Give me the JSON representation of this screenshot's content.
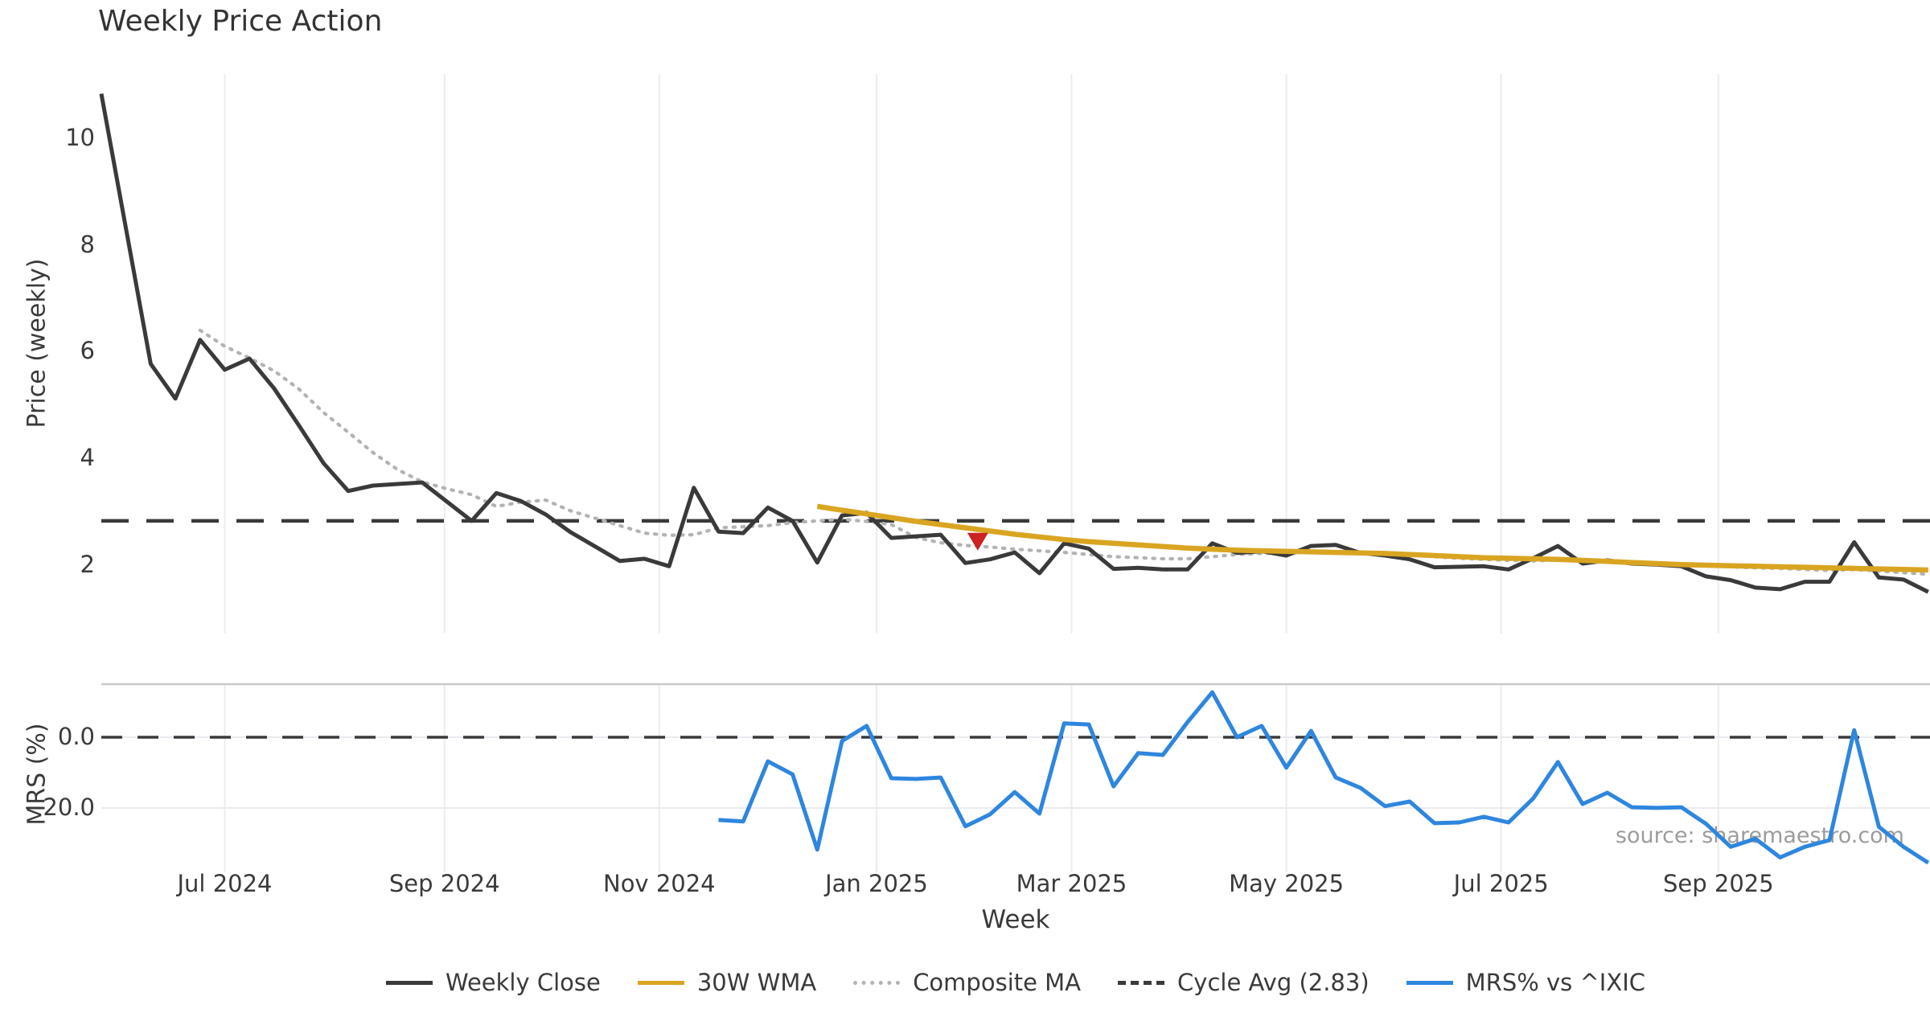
{
  "title": "Weekly Price Action",
  "source_text": "source: sharemaestro.com",
  "xlabel": "Week",
  "colors": {
    "weekly_close": "#3A3A3A",
    "wma_30w": "#D9A521",
    "composite_ma": "#B3B3B3",
    "cycle_avg": "#3A3A3A",
    "mrs_line": "#2E86DE",
    "marker": "#CC2222",
    "grid": "#ECECEC",
    "subgrid": "#E9E9EF",
    "spine": "#C9C9C9",
    "text": "#3A3A3A",
    "muted_text": "#9C9C9C"
  },
  "legend": [
    {
      "label": "Weekly Close",
      "color": "#3A3A3A",
      "style": "solid"
    },
    {
      "label": "30W WMA",
      "color": "#D9A521",
      "style": "solid"
    },
    {
      "label": "Composite MA",
      "color": "#B3B3B3",
      "style": "dotted"
    },
    {
      "label": "Cycle Avg (2.83)",
      "color": "#3A3A3A",
      "style": "dashed"
    },
    {
      "label": "MRS% vs ^IXIC",
      "color": "#2E86DE",
      "style": "solid"
    }
  ],
  "chart_data": {
    "type": "line",
    "x_unit": "week_index",
    "x_domain": [
      0,
      74
    ],
    "x_period": "Jun 2024 - Nov 2025, weekly",
    "grid": "vertical-month-gridlines",
    "legend_position": "bottom-center",
    "xticks": [
      {
        "label": "Jul 2024",
        "week": 5.0
      },
      {
        "label": "Sep 2024",
        "week": 13.9
      },
      {
        "label": "Nov 2024",
        "week": 22.6
      },
      {
        "label": "Jan 2025",
        "week": 31.4
      },
      {
        "label": "Mar 2025",
        "week": 39.3
      },
      {
        "label": "May 2025",
        "week": 48.0
      },
      {
        "label": "Jul 2025",
        "week": 56.7
      },
      {
        "label": "Sep 2025",
        "week": 65.5
      }
    ],
    "panels": [
      {
        "name": "price",
        "ylabel": "Price (weekly)",
        "ylim": [
          0.72,
          11.2
        ],
        "yticks": [
          {
            "label": "10",
            "value": 10
          },
          {
            "label": "8",
            "value": 8
          },
          {
            "label": "6",
            "value": 6
          },
          {
            "label": "4",
            "value": 4
          },
          {
            "label": "2",
            "value": 2
          }
        ],
        "series": [
          {
            "name": "Cycle Avg",
            "style": "dashed",
            "color": "#3A3A3A",
            "width": 4.5,
            "constant": 2.83
          },
          {
            "name": "Composite MA",
            "style": "dotted",
            "color": "#B3B3B3",
            "width": 4.2,
            "start_week": 4,
            "values": [
              6.4,
              6.1,
              5.88,
              5.64,
              5.3,
              4.86,
              4.49,
              4.11,
              3.79,
              3.56,
              3.43,
              3.32,
              3.1,
              3.18,
              3.22,
              3.02,
              2.88,
              2.74,
              2.6,
              2.56,
              2.57,
              2.7,
              2.72,
              2.74,
              2.8,
              2.83,
              2.86,
              2.82,
              2.76,
              2.52,
              2.42,
              2.37,
              2.34,
              2.3,
              2.27,
              2.24,
              2.2,
              2.16,
              2.14,
              2.12,
              2.12,
              2.16,
              2.2,
              2.22,
              2.23,
              2.24,
              2.25,
              2.24,
              2.22,
              2.19,
              2.16,
              2.13,
              2.11,
              2.09,
              2.08,
              2.1,
              2.08,
              2.07,
              2.06,
              2.04,
              2.01,
              1.99,
              1.97,
              1.95,
              1.94,
              1.92,
              1.9,
              1.92,
              1.89,
              1.86,
              1.83
            ]
          },
          {
            "name": "Weekly Close",
            "style": "solid",
            "color": "#3A3A3A",
            "width": 5,
            "start_week": 0,
            "values": [
              10.83,
              8.3,
              5.77,
              5.12,
              6.22,
              5.66,
              5.87,
              5.31,
              4.62,
              3.91,
              3.39,
              3.49,
              3.52,
              3.55,
              3.19,
              2.83,
              3.35,
              3.2,
              2.95,
              2.62,
              2.35,
              2.08,
              2.12,
              1.98,
              3.45,
              2.63,
              2.6,
              3.08,
              2.83,
              2.05,
              2.93,
              2.98,
              2.51,
              2.54,
              2.57,
              2.04,
              2.11,
              2.24,
              1.85,
              2.41,
              2.31,
              1.93,
              1.95,
              1.92,
              1.92,
              2.41,
              2.23,
              2.26,
              2.18,
              2.36,
              2.38,
              2.23,
              2.18,
              2.11,
              1.96,
              1.97,
              1.98,
              1.92,
              2.13,
              2.36,
              2.03,
              2.09,
              2.03,
              2.01,
              1.98,
              1.79,
              1.72,
              1.58,
              1.55,
              1.69,
              1.69,
              2.43,
              1.77,
              1.73,
              1.5
            ]
          },
          {
            "name": "30W WMA",
            "style": "solid",
            "color": "#D9A521",
            "width": 6.5,
            "start_week": 29,
            "values": [
              3.1,
              3.03,
              2.96,
              2.89,
              2.82,
              2.76,
              2.7,
              2.64,
              2.58,
              2.53,
              2.48,
              2.44,
              2.41,
              2.38,
              2.35,
              2.32,
              2.3,
              2.28,
              2.27,
              2.26,
              2.25,
              2.24,
              2.23,
              2.22,
              2.2,
              2.18,
              2.16,
              2.14,
              2.13,
              2.12,
              2.11,
              2.09,
              2.07,
              2.05,
              2.03,
              2.01,
              2.0,
              1.99,
              1.98,
              1.97,
              1.96,
              1.95,
              1.94,
              1.93,
              1.92,
              1.91
            ]
          }
        ],
        "marker": {
          "name": "sell-signal",
          "shape": "triangle-down",
          "color": "#CC2222",
          "week": 35.5,
          "value": 2.44
        }
      },
      {
        "name": "mrs",
        "ylabel": "MRS (%)",
        "ylim": [
          -38.2,
          15
        ],
        "yticks": [
          {
            "label": "0.0",
            "value": 0
          },
          {
            "label": "−20.0",
            "value": -20
          }
        ],
        "gridlines_h": [
          0,
          -20
        ],
        "series": [
          {
            "name": "Zero line",
            "style": "dashed",
            "color": "#3A3A3A",
            "width": 3.5,
            "constant": 0
          },
          {
            "name": "MRS% vs ^IXIC",
            "style": "solid",
            "color": "#2E86DE",
            "width": 5,
            "start_week": 25,
            "values": [
              -23.4,
              -23.8,
              -6.8,
              -10.5,
              -31.8,
              -1.1,
              3.2,
              -11.6,
              -11.8,
              -11.4,
              -25.2,
              -21.8,
              -15.5,
              -21.6,
              3.9,
              3.6,
              -13.9,
              -4.5,
              -5.0,
              4.3,
              12.7,
              0.0,
              3.2,
              -8.6,
              1.8,
              -11.4,
              -14.3,
              -19.5,
              -18.2,
              -24.3,
              -24.1,
              -22.5,
              -24.1,
              -17.3,
              -7.0,
              -18.9,
              -15.7,
              -19.8,
              -20.0,
              -19.8,
              -24.5,
              -31.0,
              -28.7,
              -34.0,
              -31.0,
              -29.1,
              2.0,
              -25.3,
              -31.0,
              -35.5
            ]
          }
        ]
      }
    ]
  }
}
